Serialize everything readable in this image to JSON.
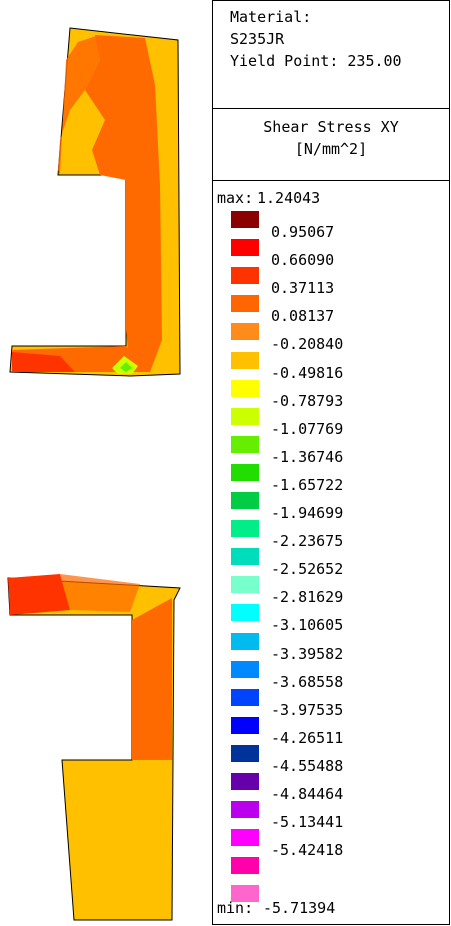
{
  "material": {
    "label": "Material:",
    "name": "S235JR",
    "yield_point": "Yield Point: 235.00"
  },
  "result": {
    "title": "Shear Stress XY",
    "unit": "[N/mm^2]"
  },
  "scale": {
    "max_label": "max:",
    "max_value": "1.24043",
    "min_label": "min:",
    "min_value": "-5.71394",
    "entries": [
      {
        "color": "#8b0000",
        "value": "0.95067"
      },
      {
        "color": "#ff0000",
        "value": "0.66090"
      },
      {
        "color": "#ff3300",
        "value": "0.37113"
      },
      {
        "color": "#ff6600",
        "value": "0.08137"
      },
      {
        "color": "#ff8c1a",
        "value": "-0.20840"
      },
      {
        "color": "#ffc000",
        "value": "-0.49816"
      },
      {
        "color": "#ffff00",
        "value": "-0.78793"
      },
      {
        "color": "#ccff00",
        "value": "-1.07769"
      },
      {
        "color": "#66ee00",
        "value": "-1.36746"
      },
      {
        "color": "#22dd00",
        "value": "-1.65722"
      },
      {
        "color": "#00cc44",
        "value": "-1.94699"
      },
      {
        "color": "#00ee88",
        "value": "-2.23675"
      },
      {
        "color": "#00ddbb",
        "value": "-2.52652"
      },
      {
        "color": "#77ffcc",
        "value": "-2.81629"
      },
      {
        "color": "#00ffff",
        "value": "-3.10605"
      },
      {
        "color": "#00bbee",
        "value": "-3.39582"
      },
      {
        "color": "#0088ff",
        "value": "-3.68558"
      },
      {
        "color": "#0044ff",
        "value": "-3.97535"
      },
      {
        "color": "#0000ff",
        "value": "-4.26511"
      },
      {
        "color": "#003399",
        "value": "-4.55488"
      },
      {
        "color": "#6600aa",
        "value": "-4.84464"
      },
      {
        "color": "#bb00ee",
        "value": "-5.13441"
      },
      {
        "color": "#ff00ff",
        "value": "-5.42418"
      },
      {
        "color": "#ff00aa",
        "value": ""
      },
      {
        "color": "#ff66cc",
        "value": ""
      }
    ]
  },
  "colors": {
    "part_orange": "#ff6a00",
    "part_light": "#ffc000",
    "part_red": "#ff3300",
    "part_yellow": "#ffff00",
    "part_green": "#66ee00"
  }
}
